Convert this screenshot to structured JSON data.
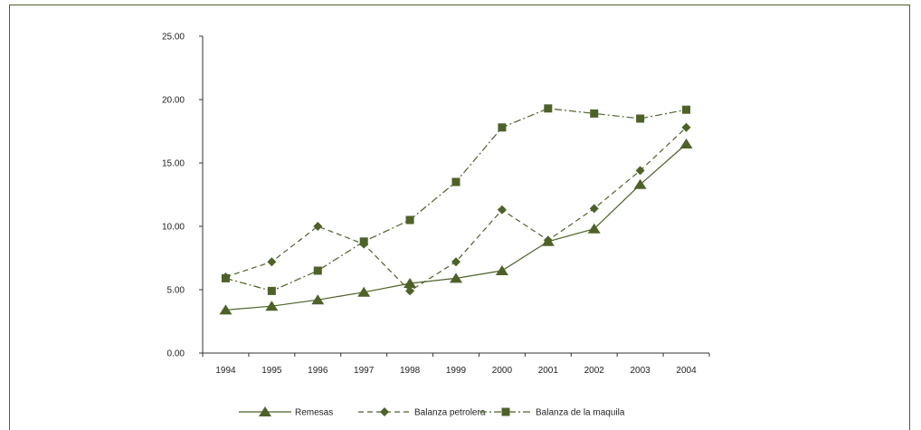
{
  "chart_data": {
    "type": "line",
    "title": "",
    "xlabel": "",
    "ylabel": "",
    "categories": [
      "1994",
      "1995",
      "1996",
      "1997",
      "1998",
      "1999",
      "2000",
      "2001",
      "2002",
      "2003",
      "2004"
    ],
    "ylim": [
      0,
      25
    ],
    "yticks": [
      "0.00",
      "5.00",
      "10.00",
      "15.00",
      "20.00",
      "25.00"
    ],
    "grid": false,
    "legend_position": "bottom",
    "line_color": "#4d6129",
    "series": [
      {
        "name": "Remesas",
        "marker": "triangle",
        "dash": "solid",
        "values": [
          3.4,
          3.7,
          4.2,
          4.8,
          5.5,
          5.9,
          6.5,
          8.8,
          9.8,
          13.3,
          16.5
        ]
      },
      {
        "name": "Balanza petrolera",
        "marker": "diamond",
        "dash": "dashed",
        "values": [
          6.0,
          7.2,
          10.0,
          8.6,
          4.9,
          7.2,
          11.3,
          8.9,
          11.4,
          14.4,
          17.8
        ]
      },
      {
        "name": "Balanza de la maquila",
        "marker": "square",
        "dash": "dashdot",
        "values": [
          5.9,
          4.9,
          6.5,
          8.8,
          10.5,
          13.5,
          17.8,
          19.3,
          18.9,
          18.5,
          19.2
        ]
      }
    ]
  }
}
